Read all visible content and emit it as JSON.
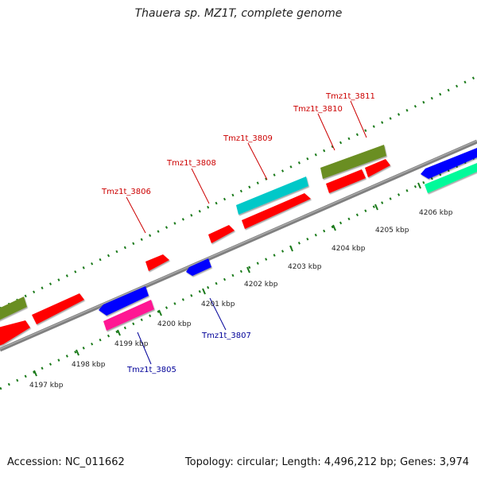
{
  "title": "Thauera sp. MZ1T, complete genome",
  "accession_text": "Accession: NC_011662",
  "stats_text": "Topology: circular; Length: 4,496,212 bp; Genes: 3,974",
  "scale": {
    "unit": "kbp",
    "labels": [
      {
        "kbp": 4197,
        "text": "4197 kbp"
      },
      {
        "kbp": 4198,
        "text": "4198 kbp"
      },
      {
        "kbp": 4199,
        "text": "4199 kbp"
      },
      {
        "kbp": 4200,
        "text": "4200 kbp"
      },
      {
        "kbp": 4201,
        "text": "4201 kbp"
      },
      {
        "kbp": 4202,
        "text": "4202 kbp"
      },
      {
        "kbp": 4203,
        "text": "4203 kbp"
      },
      {
        "kbp": 4204,
        "text": "4204 kbp"
      },
      {
        "kbp": 4205,
        "text": "4205 kbp"
      },
      {
        "kbp": 4206,
        "text": "4206 kbp"
      }
    ]
  },
  "colors": {
    "forward_label": "#cc0000",
    "reverse_label": "#000099",
    "backbone": "#808080",
    "ticks": "#1a7a1a"
  },
  "labels": [
    {
      "id": "Tmz1t_3806",
      "text": "Tmz1t_3806",
      "strand": "forward"
    },
    {
      "id": "Tmz1t_3808",
      "text": "Tmz1t_3808",
      "strand": "forward"
    },
    {
      "id": "Tmz1t_3809",
      "text": "Tmz1t_3809",
      "strand": "forward"
    },
    {
      "id": "Tmz1t_3810",
      "text": "Tmz1t_3810",
      "strand": "forward"
    },
    {
      "id": "Tmz1t_3811",
      "text": "Tmz1t_3811",
      "strand": "forward"
    },
    {
      "id": "Tmz1t_3805",
      "text": "Tmz1t_3805",
      "strand": "reverse"
    },
    {
      "id": "Tmz1t_3807",
      "text": "Tmz1t_3807",
      "strand": "reverse"
    }
  ],
  "features": [
    {
      "strand": "forward",
      "track": "outer",
      "color": "#6b8e23",
      "arrow": false
    },
    {
      "strand": "forward",
      "track": "inner",
      "color": "#ff0000",
      "arrow": true
    },
    {
      "strand": "forward",
      "track": "inner",
      "color": "#ff0000",
      "arrow": true
    },
    {
      "strand": "forward",
      "track": "inner",
      "color": "#ff0000",
      "arrow": true
    },
    {
      "strand": "forward",
      "track": "inner",
      "color": "#ff0000",
      "arrow": true
    },
    {
      "strand": "forward",
      "track": "outer",
      "color": "#00c8c8",
      "arrow": false
    },
    {
      "strand": "forward",
      "track": "inner",
      "color": "#ff0000",
      "arrow": true
    },
    {
      "strand": "forward",
      "track": "outer",
      "color": "#6b8e23",
      "arrow": false
    },
    {
      "strand": "forward",
      "track": "inner",
      "color": "#ff0000",
      "arrow": false
    },
    {
      "strand": "forward",
      "track": "inner",
      "color": "#ff0000",
      "arrow": true
    },
    {
      "strand": "reverse",
      "track": "inner",
      "color": "#0000ff",
      "arrow": true
    },
    {
      "strand": "reverse",
      "track": "outer",
      "color": "#ff1493",
      "arrow": false
    },
    {
      "strand": "reverse",
      "track": "inner",
      "color": "#0000ff",
      "arrow": true
    },
    {
      "strand": "reverse",
      "track": "inner",
      "color": "#0000ff",
      "arrow": true
    },
    {
      "strand": "reverse",
      "track": "outer",
      "color": "#00fa9a",
      "arrow": false
    }
  ]
}
